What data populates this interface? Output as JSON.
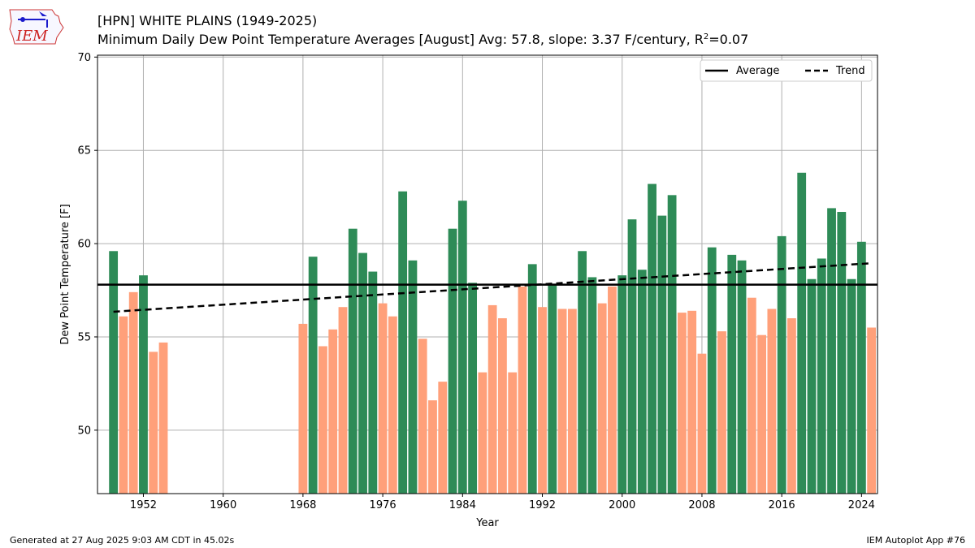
{
  "header": {
    "title": "[HPN] WHITE PLAINS (1949-2025)",
    "subtitle_main": "Minimum Daily Dew Point Temperature Averages [August]  Avg: 57.8, slope: 3.37 F/century, R",
    "subtitle_sup": "2",
    "subtitle_tail": "=0.07"
  },
  "logo": {
    "text": "IEM"
  },
  "footer": {
    "generated": "Generated at 27 Aug 2025 9:03 AM CDT in 45.02s",
    "app": "IEM Autoplot App #76"
  },
  "colors": {
    "above": "#2e8b57",
    "below": "#ffa07a",
    "grid": "#b0b0b0"
  },
  "chart_data": {
    "type": "bar",
    "xlabel": "Year",
    "ylabel": "Dew Point Temperature [F]",
    "xlim": [
      1947.4,
      2025.6
    ],
    "ylim": [
      46.6,
      70.1
    ],
    "xticks": [
      1952,
      1960,
      1968,
      1976,
      1984,
      1992,
      2000,
      2008,
      2016,
      2024
    ],
    "yticks": [
      50,
      55,
      60,
      65,
      70
    ],
    "grid": true,
    "legend_position": "top-right",
    "average": 57.8,
    "trend": {
      "start": [
        1949,
        56.35
      ],
      "end": [
        2025,
        58.95
      ]
    },
    "legend": [
      {
        "label": "Average",
        "style": "solid"
      },
      {
        "label": "Trend",
        "style": "dashed"
      }
    ],
    "bars": [
      {
        "year": 1949,
        "value": 59.6
      },
      {
        "year": 1950,
        "value": 56.1
      },
      {
        "year": 1951,
        "value": 57.4
      },
      {
        "year": 1952,
        "value": 58.3
      },
      {
        "year": 1953,
        "value": 54.2
      },
      {
        "year": 1954,
        "value": 54.7
      },
      {
        "year": 1968,
        "value": 55.7
      },
      {
        "year": 1969,
        "value": 59.3
      },
      {
        "year": 1970,
        "value": 54.5
      },
      {
        "year": 1971,
        "value": 55.4
      },
      {
        "year": 1972,
        "value": 56.6
      },
      {
        "year": 1973,
        "value": 60.8
      },
      {
        "year": 1974,
        "value": 59.5
      },
      {
        "year": 1975,
        "value": 58.5
      },
      {
        "year": 1976,
        "value": 56.8
      },
      {
        "year": 1977,
        "value": 56.1
      },
      {
        "year": 1978,
        "value": 62.8
      },
      {
        "year": 1979,
        "value": 59.1
      },
      {
        "year": 1980,
        "value": 54.9
      },
      {
        "year": 1981,
        "value": 51.6
      },
      {
        "year": 1982,
        "value": 52.6
      },
      {
        "year": 1983,
        "value": 60.8
      },
      {
        "year": 1984,
        "value": 62.3
      },
      {
        "year": 1985,
        "value": 57.9
      },
      {
        "year": 1986,
        "value": 53.1
      },
      {
        "year": 1987,
        "value": 56.7
      },
      {
        "year": 1988,
        "value": 56.0
      },
      {
        "year": 1989,
        "value": 53.1
      },
      {
        "year": 1990,
        "value": 57.7
      },
      {
        "year": 1991,
        "value": 58.9
      },
      {
        "year": 1992,
        "value": 56.6
      },
      {
        "year": 1993,
        "value": 57.8
      },
      {
        "year": 1994,
        "value": 56.5
      },
      {
        "year": 1995,
        "value": 56.5
      },
      {
        "year": 1996,
        "value": 59.6
      },
      {
        "year": 1997,
        "value": 58.2
      },
      {
        "year": 1998,
        "value": 56.8
      },
      {
        "year": 1999,
        "value": 57.7
      },
      {
        "year": 2000,
        "value": 58.3
      },
      {
        "year": 2001,
        "value": 61.3
      },
      {
        "year": 2002,
        "value": 58.6
      },
      {
        "year": 2003,
        "value": 63.2
      },
      {
        "year": 2004,
        "value": 61.5
      },
      {
        "year": 2005,
        "value": 62.6
      },
      {
        "year": 2006,
        "value": 56.3
      },
      {
        "year": 2007,
        "value": 56.4
      },
      {
        "year": 2008,
        "value": 54.1
      },
      {
        "year": 2009,
        "value": 59.8
      },
      {
        "year": 2010,
        "value": 55.3
      },
      {
        "year": 2011,
        "value": 59.4
      },
      {
        "year": 2012,
        "value": 59.1
      },
      {
        "year": 2013,
        "value": 57.1
      },
      {
        "year": 2014,
        "value": 55.1
      },
      {
        "year": 2015,
        "value": 56.5
      },
      {
        "year": 2016,
        "value": 60.4
      },
      {
        "year": 2017,
        "value": 56.0
      },
      {
        "year": 2018,
        "value": 63.8
      },
      {
        "year": 2019,
        "value": 58.1
      },
      {
        "year": 2020,
        "value": 59.2
      },
      {
        "year": 2021,
        "value": 61.9
      },
      {
        "year": 2022,
        "value": 61.7
      },
      {
        "year": 2023,
        "value": 58.1
      },
      {
        "year": 2024,
        "value": 60.1
      },
      {
        "year": 2025,
        "value": 55.5
      }
    ]
  }
}
